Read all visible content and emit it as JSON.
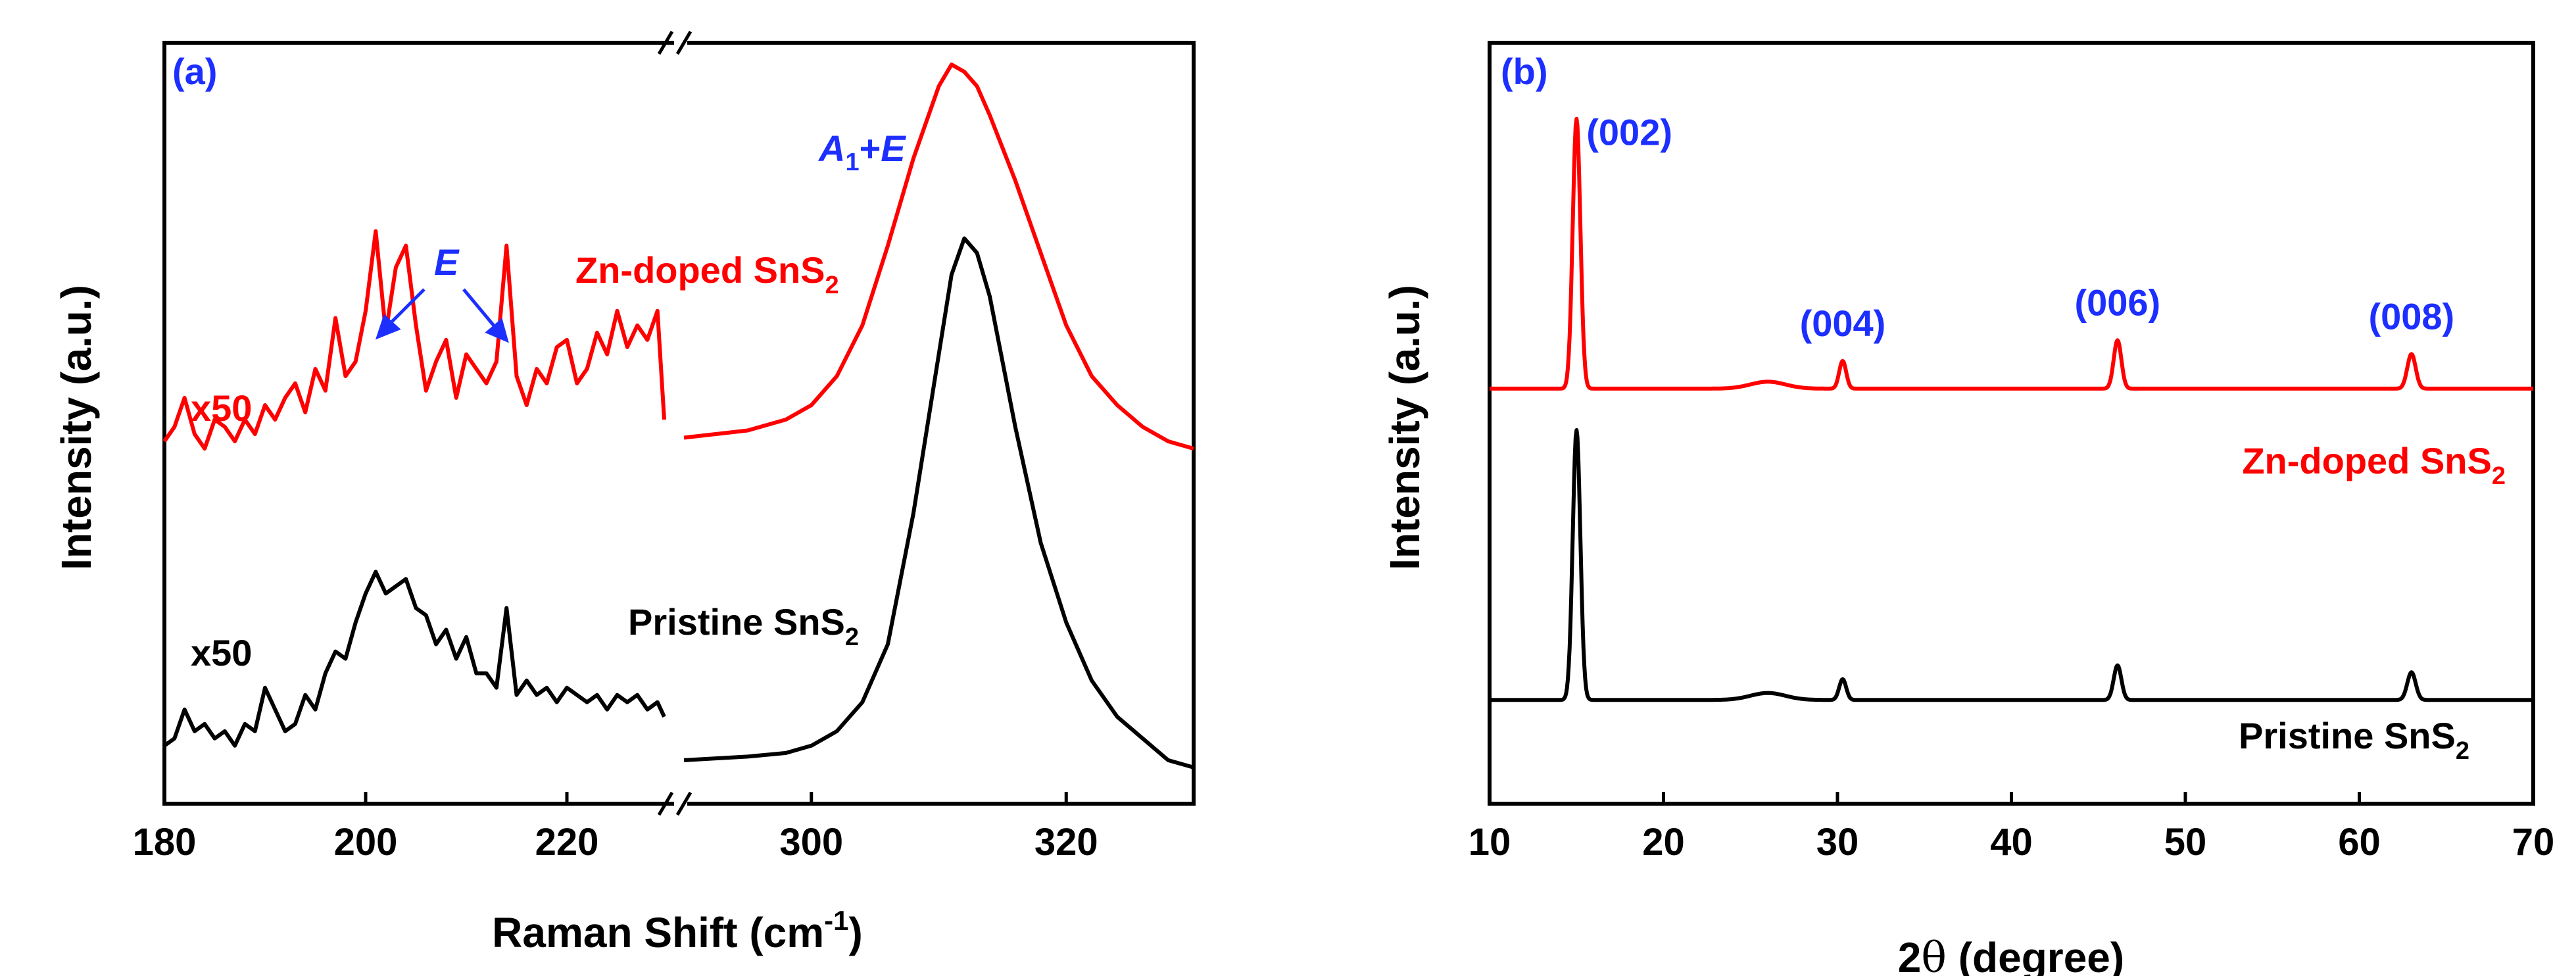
{
  "colors": {
    "pristine": "#000000",
    "doped": "#ff0000",
    "annotation": "#1c2fff",
    "axis": "#000000"
  },
  "chart_data": [
    {
      "panel": "(a)",
      "type": "line",
      "xlabel": "Raman Shift (cm",
      "xlabel_sup": "-1",
      "xlabel_tail": ")",
      "ylabel": "Intensity (a.u.)",
      "broken_x_axis": true,
      "segments": [
        {
          "xlim": [
            180,
            230
          ],
          "ticks": [
            180,
            200,
            220
          ],
          "tick_labels": [
            "180",
            "200",
            "220"
          ]
        },
        {
          "xlim": [
            290,
            330
          ],
          "ticks": [
            300,
            320
          ],
          "tick_labels": [
            "300",
            "320"
          ]
        }
      ],
      "ylim": [
        0,
        1.05
      ],
      "series": [
        {
          "name": "Zn-doped SnS2",
          "color": "#ff0000",
          "low_x": [
            180,
            181,
            182,
            183,
            184,
            185,
            186,
            187,
            188,
            189,
            190,
            191,
            192,
            193,
            194,
            195,
            196,
            197,
            198,
            199,
            200,
            201,
            202,
            203,
            204,
            205,
            206,
            207,
            208,
            209,
            210,
            211,
            212,
            213,
            214,
            215,
            216,
            217,
            218,
            219,
            220,
            221,
            222,
            223,
            224,
            225,
            226,
            227,
            228,
            229,
            230
          ],
          "low_y": [
            0.5,
            0.52,
            0.56,
            0.51,
            0.49,
            0.53,
            0.52,
            0.5,
            0.53,
            0.51,
            0.55,
            0.53,
            0.56,
            0.58,
            0.54,
            0.6,
            0.57,
            0.67,
            0.59,
            0.61,
            0.68,
            0.79,
            0.65,
            0.74,
            0.77,
            0.66,
            0.57,
            0.61,
            0.64,
            0.56,
            0.62,
            0.6,
            0.58,
            0.61,
            0.77,
            0.59,
            0.55,
            0.6,
            0.58,
            0.63,
            0.64,
            0.58,
            0.6,
            0.65,
            0.62,
            0.68,
            0.63,
            0.66,
            0.64,
            0.68,
            0.53
          ],
          "high_x": [
            290,
            295,
            298,
            300,
            302,
            304,
            306,
            308,
            310,
            311,
            312,
            313,
            314,
            316,
            318,
            320,
            322,
            324,
            326,
            328,
            330
          ],
          "high_y": [
            0.505,
            0.515,
            0.53,
            0.55,
            0.59,
            0.66,
            0.77,
            0.89,
            0.99,
            1.02,
            1.01,
            0.99,
            0.95,
            0.86,
            0.76,
            0.66,
            0.59,
            0.55,
            0.52,
            0.5,
            0.49
          ],
          "label": "x50"
        },
        {
          "name": "Pristine SnS2",
          "color": "#000000",
          "low_x": [
            180,
            181,
            182,
            183,
            184,
            185,
            186,
            187,
            188,
            189,
            190,
            191,
            192,
            193,
            194,
            195,
            196,
            197,
            198,
            199,
            200,
            201,
            202,
            203,
            204,
            205,
            206,
            207,
            208,
            209,
            210,
            211,
            212,
            213,
            214,
            215,
            216,
            217,
            218,
            219,
            220,
            221,
            222,
            223,
            224,
            225,
            226,
            227,
            228,
            229,
            230
          ],
          "low_y": [
            0.08,
            0.09,
            0.13,
            0.1,
            0.11,
            0.09,
            0.1,
            0.08,
            0.11,
            0.1,
            0.16,
            0.13,
            0.1,
            0.11,
            0.15,
            0.13,
            0.18,
            0.21,
            0.2,
            0.25,
            0.29,
            0.32,
            0.29,
            0.3,
            0.31,
            0.27,
            0.26,
            0.22,
            0.24,
            0.2,
            0.23,
            0.18,
            0.18,
            0.16,
            0.27,
            0.15,
            0.17,
            0.15,
            0.16,
            0.14,
            0.16,
            0.15,
            0.14,
            0.15,
            0.13,
            0.15,
            0.14,
            0.15,
            0.13,
            0.14,
            0.12
          ],
          "high_x": [
            290,
            295,
            298,
            300,
            302,
            304,
            306,
            308,
            310,
            311,
            312,
            313,
            314,
            316,
            318,
            320,
            322,
            324,
            326,
            328,
            330
          ],
          "high_y": [
            0.06,
            0.065,
            0.07,
            0.08,
            0.1,
            0.14,
            0.22,
            0.4,
            0.62,
            0.73,
            0.78,
            0.76,
            0.7,
            0.52,
            0.36,
            0.25,
            0.17,
            0.12,
            0.09,
            0.06,
            0.05
          ],
          "label": "x50"
        }
      ],
      "annotations": {
        "E": "E",
        "A1E_a": "A",
        "A1E_sub": "1",
        "A1E_b": "+",
        "A1E_c": "E",
        "doped_label": "Zn-doped SnS",
        "pristine_label": "Pristine SnS",
        "sub2": "2",
        "x50_doped": "x50",
        "x50_pristine": "x50",
        "E_peaks_x": [
          201,
          215
        ]
      }
    },
    {
      "panel": "(b)",
      "type": "line",
      "xlabel_pre": "2",
      "xlabel_theta": "θ",
      "xlabel_post": " (degree)",
      "ylabel": "Intensity (a.u.)",
      "xlim": [
        10,
        70
      ],
      "ticks": [
        10,
        20,
        30,
        40,
        50,
        60,
        70
      ],
      "tick_labels": [
        "10",
        "20",
        "30",
        "40",
        "50",
        "60",
        "70"
      ],
      "ylim": [
        0,
        1.1
      ],
      "peaks": [
        {
          "hkl": "(002)",
          "two_theta": 15.0
        },
        {
          "hkl": "(004)",
          "two_theta": 30.3
        },
        {
          "hkl": "(006)",
          "two_theta": 46.1
        },
        {
          "hkl": "(008)",
          "two_theta": 63.0
        }
      ],
      "series": [
        {
          "name": "Zn-doped SnS2",
          "color": "#ff0000",
          "baseline": 0.6,
          "peak_heights": [
            0.39,
            0.04,
            0.07,
            0.05
          ],
          "broad_bump": {
            "center": 26,
            "height": 0.01
          }
        },
        {
          "name": "Pristine SnS2",
          "color": "#000000",
          "baseline": 0.15,
          "peak_heights": [
            0.39,
            0.03,
            0.05,
            0.04
          ],
          "broad_bump": {
            "center": 26,
            "height": 0.01
          }
        }
      ],
      "annotations": {
        "doped_label": "Zn-doped SnS",
        "pristine_label": "Pristine SnS",
        "sub2": "2"
      }
    }
  ]
}
